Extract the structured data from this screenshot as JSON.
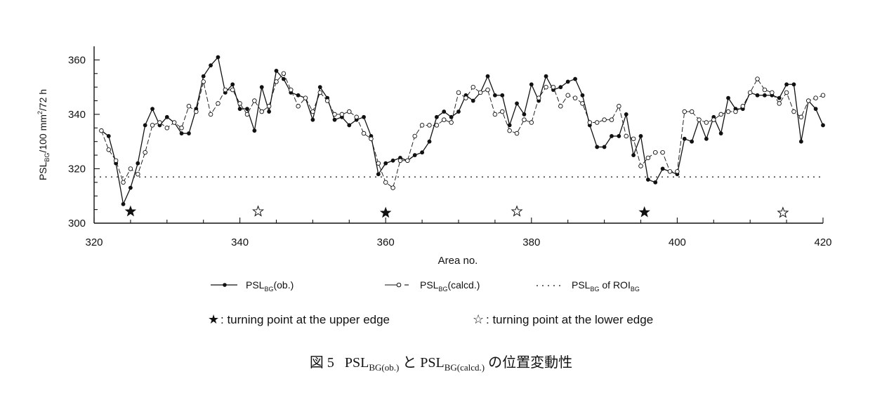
{
  "chart_data": {
    "type": "line",
    "xlabel": "Area no.",
    "ylabel": "PSL_BG/100 mm²/72 h",
    "xlim": [
      320,
      420
    ],
    "ylim": [
      300,
      365
    ],
    "x_ticks": [
      "320",
      "340",
      "360",
      "380",
      "400",
      "420"
    ],
    "y_ticks": [
      "300",
      "320",
      "340",
      "360"
    ],
    "reference_line": {
      "name": "PSL_BG of ROI_BG",
      "y": 317
    },
    "series": [
      {
        "name": "PSL_BG(ob.)",
        "style": "filled-circle",
        "x": [
          321,
          322,
          323,
          324,
          325,
          326,
          327,
          328,
          329,
          330,
          331,
          332,
          333,
          334,
          335,
          336,
          337,
          338,
          339,
          340,
          341,
          342,
          343,
          344,
          345,
          346,
          347,
          348,
          349,
          350,
          351,
          352,
          353,
          354,
          355,
          356,
          357,
          358,
          359,
          360,
          361,
          362,
          363,
          364,
          365,
          366,
          367,
          368,
          369,
          370,
          371,
          372,
          373,
          374,
          375,
          376,
          377,
          378,
          379,
          380,
          381,
          382,
          383,
          384,
          385,
          386,
          387,
          388,
          389,
          390,
          391,
          392,
          393,
          394,
          395,
          396,
          397,
          398,
          399,
          400,
          401,
          402,
          403,
          404,
          405,
          406,
          407,
          408,
          409,
          410,
          411,
          412,
          413,
          414,
          415,
          416,
          417,
          418,
          419,
          420
        ],
        "y": [
          334,
          332,
          322,
          307,
          313,
          322,
          336,
          342,
          336,
          339,
          337,
          333,
          333,
          342,
          354,
          358,
          361,
          348,
          351,
          342,
          342,
          334,
          350,
          341,
          356,
          353,
          348,
          347,
          346,
          338,
          350,
          346,
          338,
          339,
          336,
          338,
          339,
          332,
          318,
          322,
          323,
          324,
          323,
          325,
          326,
          330,
          339,
          341,
          339,
          341,
          347,
          345,
          348,
          354,
          347,
          347,
          336,
          344,
          340,
          351,
          345,
          354,
          349,
          350,
          352,
          353,
          347,
          336,
          328,
          328,
          332,
          332,
          340,
          325,
          332,
          316,
          315,
          320,
          319,
          318,
          331,
          330,
          338,
          331,
          339,
          333,
          346,
          342,
          342,
          348,
          347,
          347,
          347,
          346,
          351,
          351,
          330,
          345,
          342,
          336
        ],
        "color": "#111111"
      },
      {
        "name": "PSL_BG(calcd.)",
        "style": "open-circle",
        "x": [
          321,
          322,
          323,
          324,
          325,
          326,
          327,
          328,
          329,
          330,
          331,
          332,
          333,
          334,
          335,
          336,
          337,
          338,
          339,
          340,
          341,
          342,
          343,
          344,
          345,
          346,
          347,
          348,
          349,
          350,
          351,
          352,
          353,
          354,
          355,
          356,
          357,
          358,
          359,
          360,
          361,
          362,
          363,
          364,
          365,
          366,
          367,
          368,
          369,
          370,
          371,
          372,
          373,
          374,
          375,
          376,
          377,
          378,
          379,
          380,
          381,
          382,
          383,
          384,
          385,
          386,
          387,
          388,
          389,
          390,
          391,
          392,
          393,
          394,
          395,
          396,
          397,
          398,
          399,
          400,
          401,
          402,
          403,
          404,
          405,
          406,
          407,
          408,
          409,
          410,
          411,
          412,
          413,
          414,
          415,
          416,
          417,
          418,
          419,
          420
        ],
        "y": [
          334,
          327,
          323,
          315,
          320,
          318,
          326,
          336,
          337,
          335,
          337,
          335,
          343,
          341,
          352,
          340,
          344,
          349,
          349,
          344,
          340,
          345,
          341,
          343,
          352,
          355,
          349,
          343,
          346,
          341,
          348,
          345,
          340,
          340,
          341,
          339,
          333,
          331,
          322,
          315,
          313,
          323,
          323,
          332,
          336,
          336,
          336,
          338,
          337,
          348,
          346,
          350,
          348,
          349,
          340,
          341,
          334,
          333,
          338,
          337,
          346,
          350,
          350,
          343,
          347,
          346,
          344,
          337,
          337,
          338,
          338,
          343,
          332,
          331,
          321,
          324,
          326,
          326,
          319,
          319,
          341,
          341,
          338,
          337,
          338,
          340,
          341,
          341,
          343,
          348,
          353,
          349,
          348,
          344,
          348,
          341,
          339,
          345,
          346,
          347
        ],
        "color": "#111111"
      }
    ],
    "markers": [
      {
        "x": 325,
        "y": 304.3,
        "kind": "filled-star"
      },
      {
        "x": 342.5,
        "y": 304.3,
        "kind": "open-star"
      },
      {
        "x": 360,
        "y": 303.8,
        "kind": "filled-star"
      },
      {
        "x": 378,
        "y": 304.3,
        "kind": "open-star"
      },
      {
        "x": 395.5,
        "y": 304.0,
        "kind": "filled-star"
      },
      {
        "x": 414.5,
        "y": 303.8,
        "kind": "open-star"
      }
    ],
    "grid": false,
    "legend_placement": "bottom"
  },
  "axis_text": {
    "ylabel": "PSL",
    "ylabel_sub": "BG",
    "ylabel_rest": "/100 mm",
    "ylabel_sup": "2",
    "ylabel_tail": "/72 h"
  },
  "legend": {
    "ob_main": "PSL",
    "ob_sub": "BG",
    "ob_tail": "(ob.)",
    "calc_main": "PSL",
    "calc_sub": "BG",
    "calc_tail": "(calcd.)",
    "roi_main": "PSL",
    "roi_sub": "BG",
    "roi_mid": " of ROI",
    "roi_sub2": "BG",
    "star_upper": ": turning point at the upper edge",
    "star_lower": ": turning point at the lower edge",
    "filled_star_glyph": "★",
    "open_star_glyph": "☆"
  },
  "caption": {
    "prefix": "図 5",
    "psl1": "PSL",
    "psl1_sub": "BG(ob.)",
    "and": " と ",
    "psl2": "PSL",
    "psl2_sub": "BG(calcd.)",
    "suffix": " の位置変動性"
  }
}
